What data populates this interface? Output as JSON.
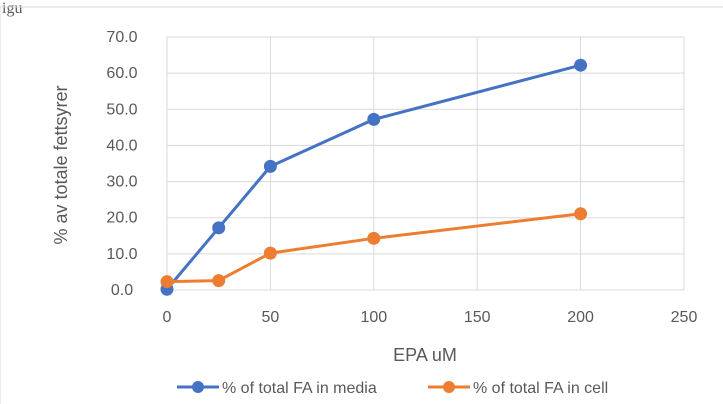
{
  "caption_fragment": "igu",
  "chart_data": {
    "type": "line",
    "xlabel": "EPA uM",
    "ylabel": "% av totale fettsyrer",
    "xlim": [
      0,
      250
    ],
    "ylim": [
      0,
      70
    ],
    "x_ticks": [
      "0",
      "50",
      "100",
      "150",
      "200",
      "250"
    ],
    "y_ticks": [
      "0.0",
      "10.0",
      "20.0",
      "30.0",
      "40.0",
      "50.0",
      "60.0",
      "70.0"
    ],
    "grid": "vertical and horizontal",
    "legend_position": "bottom",
    "series": [
      {
        "name": "% of total FA  in media",
        "color": "#4472c4",
        "x": [
          0,
          25,
          50,
          100,
          200
        ],
        "y": [
          0.2,
          17.2,
          34.2,
          47.2,
          62.2
        ]
      },
      {
        "name": "% of total FA in cell",
        "color": "#ed7d31",
        "x": [
          0,
          25,
          50,
          100,
          200
        ],
        "y": [
          2.3,
          2.6,
          10.2,
          14.3,
          21.1
        ]
      }
    ]
  }
}
